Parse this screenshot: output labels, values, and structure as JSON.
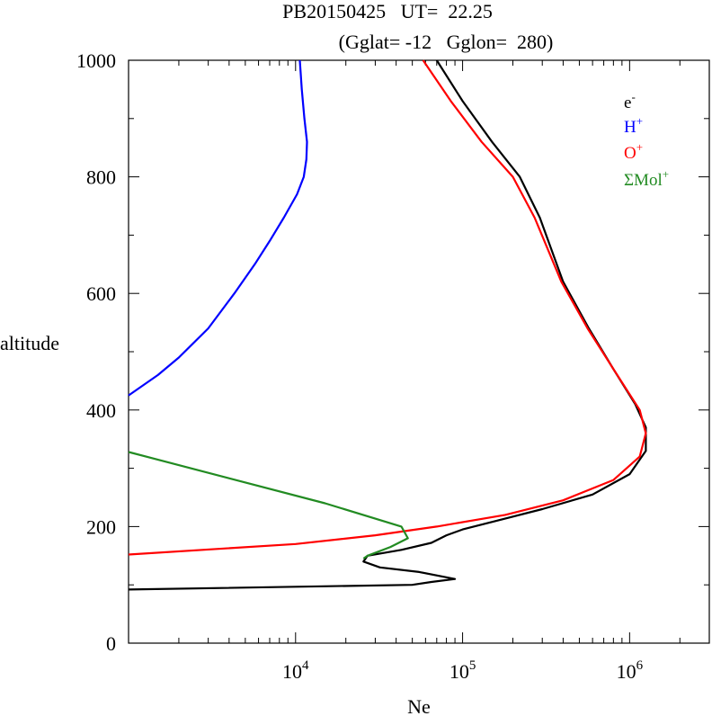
{
  "chart_data": {
    "type": "line",
    "title_line1": "PB20150425   UT=  22.25",
    "title_line2": "(Gglat= -12   Gglon=  280)",
    "xlabel": "Ne",
    "ylabel": "altitude",
    "x_scale": "log",
    "xlim": [
      1000,
      3000000
    ],
    "ylim": [
      0,
      1000
    ],
    "x_major_ticks": [
      {
        "value": 10000,
        "base": "10",
        "exp": "4"
      },
      {
        "value": 100000,
        "base": "10",
        "exp": "5"
      },
      {
        "value": 1000000,
        "base": "10",
        "exp": "6"
      }
    ],
    "y_ticks": [
      {
        "value": 0,
        "label": "0"
      },
      {
        "value": 200,
        "label": "200"
      },
      {
        "value": 400,
        "label": "400"
      },
      {
        "value": 600,
        "label": "600"
      },
      {
        "value": 800,
        "label": "800"
      },
      {
        "value": 1000,
        "label": "1000"
      }
    ],
    "legend_position": "top-right",
    "grid": false,
    "series": [
      {
        "name": "e-",
        "base": "e",
        "sup": "-",
        "color": "#000000",
        "points": [
          [
            1000,
            92
          ],
          [
            50000,
            100
          ],
          [
            65000,
            105
          ],
          [
            90000,
            110
          ],
          [
            55000,
            122
          ],
          [
            32000,
            130
          ],
          [
            25500,
            140
          ],
          [
            27000,
            150
          ],
          [
            43000,
            160
          ],
          [
            65000,
            172
          ],
          [
            80000,
            185
          ],
          [
            100000,
            195
          ],
          [
            160000,
            210
          ],
          [
            300000,
            230
          ],
          [
            600000,
            255
          ],
          [
            1000000,
            290
          ],
          [
            1250000,
            330
          ],
          [
            1250000,
            370
          ],
          [
            1080000,
            410
          ],
          [
            800000,
            470
          ],
          [
            570000,
            540
          ],
          [
            400000,
            620
          ],
          [
            290000,
            730
          ],
          [
            220000,
            800
          ],
          [
            150000,
            860
          ],
          [
            100000,
            930
          ],
          [
            70000,
            1000
          ]
        ]
      },
      {
        "name": "H+",
        "base": "H",
        "sup": "+",
        "color": "#0000ff",
        "points": [
          [
            1000,
            425
          ],
          [
            1500,
            460
          ],
          [
            2000,
            490
          ],
          [
            3000,
            540
          ],
          [
            4300,
            600
          ],
          [
            5700,
            650
          ],
          [
            7000,
            690
          ],
          [
            8500,
            730
          ],
          [
            10200,
            770
          ],
          [
            11200,
            800
          ],
          [
            11600,
            830
          ],
          [
            11700,
            860
          ],
          [
            11300,
            900
          ],
          [
            10900,
            950
          ],
          [
            10600,
            1000
          ]
        ]
      },
      {
        "name": "O+",
        "base": "O",
        "sup": "+",
        "color": "#ff0000",
        "points": [
          [
            1000,
            152
          ],
          [
            10000,
            170
          ],
          [
            30000,
            185
          ],
          [
            70000,
            200
          ],
          [
            180000,
            220
          ],
          [
            400000,
            245
          ],
          [
            800000,
            280
          ],
          [
            1150000,
            320
          ],
          [
            1250000,
            360
          ],
          [
            1150000,
            400
          ],
          [
            800000,
            470
          ],
          [
            560000,
            540
          ],
          [
            390000,
            620
          ],
          [
            270000,
            730
          ],
          [
            200000,
            800
          ],
          [
            130000,
            860
          ],
          [
            85000,
            930
          ],
          [
            58000,
            1000
          ]
        ]
      },
      {
        "name": "ΣMol+",
        "base": "ΣMol",
        "sup": "+",
        "color": "#228b22",
        "points": [
          [
            1000,
            328
          ],
          [
            15000,
            240
          ],
          [
            43000,
            200
          ],
          [
            47000,
            180
          ],
          [
            37000,
            165
          ],
          [
            27000,
            150
          ],
          [
            25500,
            145
          ]
        ]
      }
    ]
  }
}
